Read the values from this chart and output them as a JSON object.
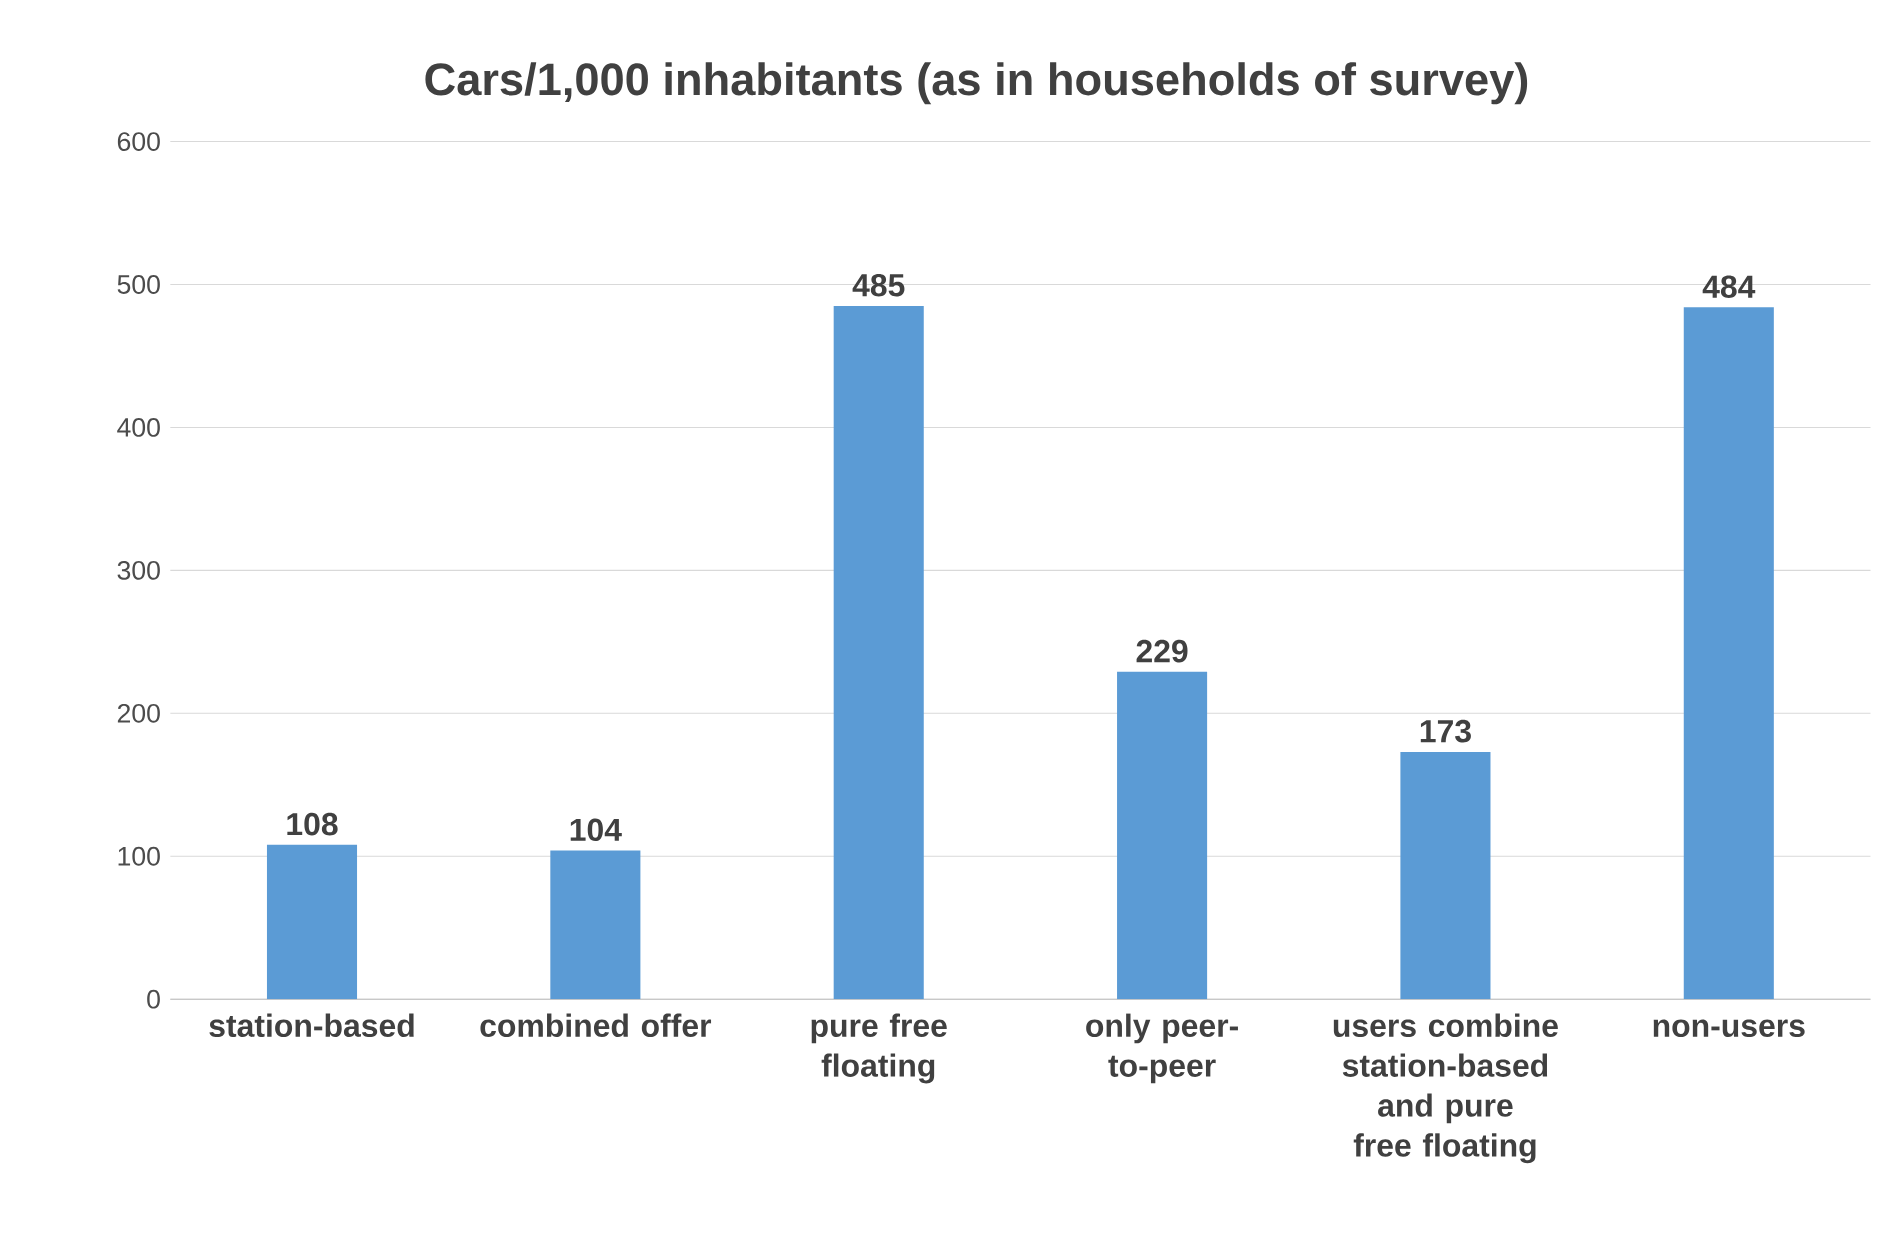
{
  "chart_data": {
    "type": "bar",
    "title": "Cars/1,000 inhabitants (as in households of survey)",
    "categories": [
      "station-based",
      "combined offer",
      "pure free floating",
      "only peer-to-peer",
      "users combine station-based and pure free floating",
      "non-users"
    ],
    "values": [
      108,
      104,
      485,
      229,
      173,
      484
    ],
    "color": "#5b9bd5",
    "ylim": [
      0,
      600
    ],
    "yticks": [
      0,
      100,
      200,
      300,
      400,
      500,
      600
    ],
    "grid": "y",
    "data_labels": true
  }
}
